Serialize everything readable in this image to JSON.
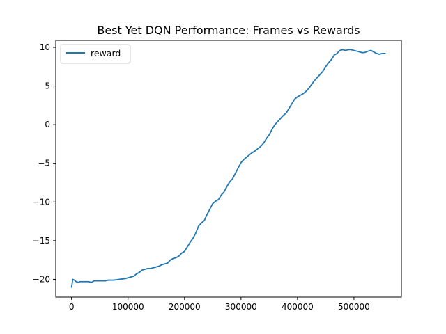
{
  "chart_data": {
    "type": "line",
    "title": "Best Yet DQN Performance: Frames vs Rewards",
    "xlabel": "",
    "ylabel": "",
    "xlim": [
      -28000,
      584000
    ],
    "ylim": [
      -22.3,
      10.9
    ],
    "xticks": [
      0,
      100000,
      200000,
      300000,
      400000,
      500000
    ],
    "xtick_labels": [
      "0",
      "100000",
      "200000",
      "300000",
      "400000",
      "500000"
    ],
    "yticks": [
      -20,
      -15,
      -10,
      -5,
      0,
      5,
      10
    ],
    "ytick_labels": [
      "−20",
      "−15",
      "−10",
      "−5",
      "0",
      "5",
      "10"
    ],
    "grid": false,
    "legend": "upper left",
    "series": [
      {
        "name": "reward",
        "color": "#1f77b4",
        "x": [
          0,
          1000,
          2000,
          5000,
          8000,
          12000,
          15000,
          20000,
          25000,
          30000,
          35000,
          40000,
          45000,
          50000,
          55000,
          60000,
          65000,
          70000,
          75000,
          80000,
          85000,
          90000,
          95000,
          100000,
          105000,
          110000,
          115000,
          120000,
          125000,
          130000,
          135000,
          140000,
          145000,
          150000,
          155000,
          160000,
          165000,
          170000,
          175000,
          180000,
          185000,
          190000,
          195000,
          200000,
          205000,
          210000,
          215000,
          220000,
          225000,
          230000,
          235000,
          240000,
          245000,
          250000,
          255000,
          260000,
          265000,
          270000,
          275000,
          280000,
          285000,
          290000,
          295000,
          300000,
          305000,
          310000,
          315000,
          320000,
          325000,
          330000,
          335000,
          340000,
          345000,
          350000,
          355000,
          360000,
          365000,
          370000,
          375000,
          380000,
          385000,
          390000,
          395000,
          400000,
          405000,
          410000,
          415000,
          420000,
          425000,
          430000,
          435000,
          440000,
          445000,
          450000,
          455000,
          460000,
          465000,
          470000,
          475000,
          480000,
          485000,
          490000,
          495000,
          500000,
          505000,
          510000,
          515000,
          520000,
          525000,
          530000,
          535000,
          540000,
          545000,
          550000,
          555000
        ],
        "y": [
          -21.0,
          -20.6,
          -20.0,
          -20.1,
          -20.3,
          -20.4,
          -20.3,
          -20.3,
          -20.3,
          -20.3,
          -20.4,
          -20.2,
          -20.2,
          -20.2,
          -20.2,
          -20.2,
          -20.1,
          -20.1,
          -20.1,
          -20.05,
          -20.0,
          -19.95,
          -19.9,
          -19.8,
          -19.7,
          -19.6,
          -19.3,
          -19.1,
          -18.8,
          -18.7,
          -18.6,
          -18.6,
          -18.5,
          -18.4,
          -18.3,
          -18.1,
          -18.0,
          -17.9,
          -17.5,
          -17.3,
          -17.2,
          -17.0,
          -16.6,
          -16.4,
          -15.8,
          -15.2,
          -14.7,
          -14.0,
          -13.1,
          -12.7,
          -12.4,
          -11.6,
          -10.9,
          -10.2,
          -9.9,
          -9.7,
          -9.1,
          -8.7,
          -8.0,
          -7.4,
          -7.0,
          -6.3,
          -5.6,
          -4.9,
          -4.5,
          -4.2,
          -3.9,
          -3.6,
          -3.4,
          -3.1,
          -2.8,
          -2.4,
          -1.8,
          -1.3,
          -0.6,
          0.0,
          0.4,
          0.8,
          1.2,
          1.5,
          2.1,
          2.7,
          3.3,
          3.6,
          3.8,
          4.0,
          4.3,
          4.7,
          5.2,
          5.7,
          6.1,
          6.5,
          6.9,
          7.5,
          8.0,
          8.4,
          9.0,
          9.2,
          9.6,
          9.7,
          9.6,
          9.7,
          9.7,
          9.6,
          9.5,
          9.4,
          9.3,
          9.35,
          9.5,
          9.6,
          9.4,
          9.2,
          9.1,
          9.2,
          9.2
        ]
      }
    ]
  }
}
